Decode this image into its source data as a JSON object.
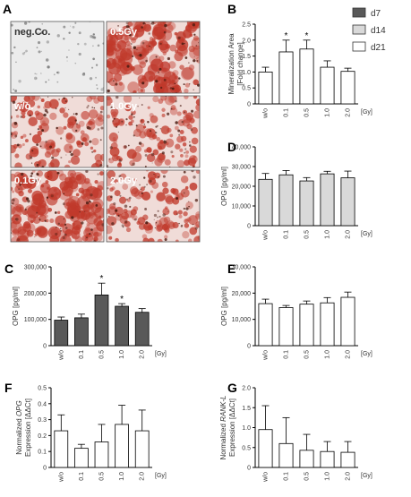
{
  "colors": {
    "d7": "#595959",
    "d14": "#d9d9d9",
    "d21": "#ffffff",
    "stain_red": "#c0392b",
    "stain_dark": "#4a1a10",
    "stain_bg": "#f0dcd8",
    "neg_bg": "#ececec"
  },
  "legend": {
    "items": [
      {
        "label": "d7",
        "color": "#595959"
      },
      {
        "label": "d14",
        "color": "#d9d9d9"
      },
      {
        "label": "d21",
        "color": "#ffffff"
      }
    ]
  },
  "panel_a": {
    "letter": "A",
    "tiles": [
      {
        "label": "neg.Co.",
        "stain": "none"
      },
      {
        "label": "0.5Gy",
        "stain": "heavy"
      },
      {
        "label": "w/o.",
        "stain": "moderate"
      },
      {
        "label": "1.0Gy",
        "stain": "moderate"
      },
      {
        "label": "0.1Gy",
        "stain": "heavy"
      },
      {
        "label": "2.0Gy",
        "stain": "moderate"
      }
    ]
  },
  "chart_data": [
    {
      "panel": "B",
      "type": "bar",
      "ylabel_lines": [
        "Mineralization Area",
        "[Fold change]"
      ],
      "xunit": "[Gy]",
      "categories": [
        "w/o",
        "0.1",
        "0.5",
        "1.0",
        "2.0"
      ],
      "values": [
        1.0,
        1.63,
        1.72,
        1.15,
        1.02
      ],
      "errors": [
        0.15,
        0.37,
        0.28,
        0.2,
        0.1
      ],
      "significant": [
        false,
        true,
        true,
        false,
        false
      ],
      "ylim": [
        0,
        2.5
      ],
      "yticks": [
        0,
        0.5,
        1.0,
        1.5,
        2.0,
        2.5
      ],
      "ytick_labels": [
        "0",
        "0.5",
        "1.0",
        "1.5",
        "2.0",
        "2.5"
      ],
      "fill": "#ffffff",
      "ylabel_spans": []
    },
    {
      "panel": "D",
      "type": "bar",
      "ylabel_lines": [
        "OPG [pg/ml]"
      ],
      "xunit": "[Gy]",
      "categories": [
        "w/o",
        "0.1",
        "0.5",
        "1.0",
        "2.0"
      ],
      "values": [
        23500,
        25800,
        22700,
        26300,
        24300
      ],
      "errors": [
        3000,
        2200,
        1700,
        1300,
        3400
      ],
      "significant": [
        false,
        false,
        false,
        false,
        false
      ],
      "ylim": [
        0,
        40000
      ],
      "yticks": [
        0,
        10000,
        20000,
        30000,
        40000
      ],
      "ytick_labels": [
        "0",
        "10,000",
        "20,000",
        "30,000",
        "40,000"
      ],
      "fill": "#d9d9d9",
      "ylabel_spans": []
    },
    {
      "panel": "C",
      "type": "bar",
      "ylabel_lines": [
        "OPG [pg/ml]"
      ],
      "xunit": "[Gy]",
      "categories": [
        "w/o",
        "0.1",
        "0.5",
        "1.0",
        "2.0"
      ],
      "values": [
        97000,
        106000,
        193000,
        150000,
        127000
      ],
      "errors": [
        12000,
        14000,
        45000,
        10000,
        14000
      ],
      "significant": [
        false,
        false,
        true,
        true,
        false
      ],
      "ylim": [
        0,
        300000
      ],
      "yticks": [
        0,
        100000,
        200000,
        300000
      ],
      "ytick_labels": [
        "0",
        "100,000",
        "200,000",
        "300,000"
      ],
      "fill": "#595959",
      "ylabel_spans": []
    },
    {
      "panel": "E",
      "type": "bar",
      "ylabel_lines": [
        "OPG [pg/ml]"
      ],
      "xunit": "[Gy]",
      "categories": [
        "w/o",
        "0.1",
        "0.5",
        "1.0",
        "2.0"
      ],
      "values": [
        16000,
        14500,
        15800,
        16300,
        18400
      ],
      "errors": [
        1700,
        800,
        1200,
        2000,
        2000
      ],
      "significant": [
        false,
        false,
        false,
        false,
        false
      ],
      "ylim": [
        0,
        30000
      ],
      "yticks": [
        0,
        10000,
        20000,
        30000
      ],
      "ytick_labels": [
        "0",
        "10,000",
        "20,000",
        "30,000"
      ],
      "fill": "#ffffff",
      "ylabel_spans": []
    },
    {
      "panel": "F",
      "type": "bar",
      "ylabel_lines": [
        "Normalized |OPG|",
        "Expression [ΔΔCt]"
      ],
      "xunit": "[Gy]",
      "categories": [
        "w/o",
        "0.1",
        "0.5",
        "1.0",
        "2.0"
      ],
      "values": [
        0.23,
        0.12,
        0.16,
        0.27,
        0.23
      ],
      "errors": [
        0.1,
        0.025,
        0.11,
        0.12,
        0.13
      ],
      "significant": [
        false,
        false,
        false,
        false,
        false
      ],
      "ylim": [
        0,
        0.5
      ],
      "yticks": [
        0,
        0.1,
        0.2,
        0.3,
        0.4,
        0.5
      ],
      "ytick_labels": [
        "0",
        "0.1",
        "0.2",
        "0.3",
        "0.4",
        "0.5"
      ],
      "fill": "#ffffff"
    },
    {
      "panel": "G",
      "type": "bar",
      "ylabel_lines": [
        "Normalized |RANK-L|",
        "Expression [ΔΔCt]"
      ],
      "xunit": "[Gy]",
      "categories": [
        "w/o",
        "0.1",
        "0.5",
        "1.0",
        "2.0"
      ],
      "values": [
        0.95,
        0.6,
        0.43,
        0.4,
        0.38
      ],
      "errors": [
        0.6,
        0.65,
        0.4,
        0.25,
        0.27
      ],
      "significant": [
        false,
        false,
        false,
        false,
        false
      ],
      "ylim": [
        0,
        2.0
      ],
      "yticks": [
        0,
        0.5,
        1.0,
        1.5,
        2.0
      ],
      "ytick_labels": [
        "0",
        "0.5",
        "1.0",
        "1.5",
        "2.0"
      ],
      "fill": "#ffffff"
    }
  ]
}
